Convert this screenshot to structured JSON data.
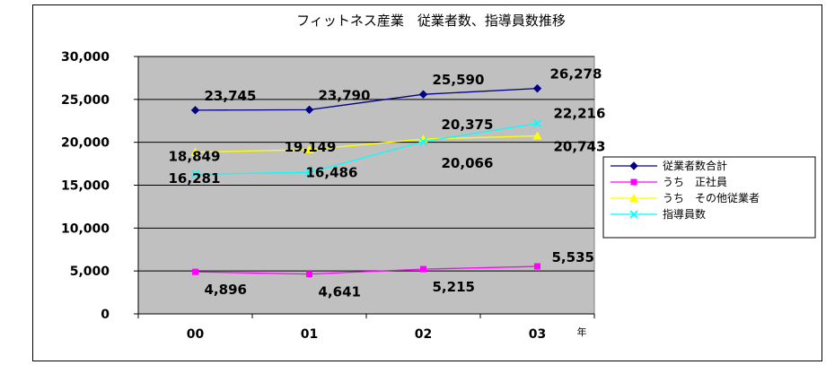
{
  "chart_data": {
    "type": "line",
    "title": "フィットネス産業　従業者数、指導員数推移",
    "categories": [
      "00",
      "01",
      "02",
      "03"
    ],
    "x_unit": "年",
    "ylim": [
      0,
      30000
    ],
    "yticks": [
      "0",
      "5,000",
      "10,000",
      "15,000",
      "20,000",
      "25,000",
      "30,000"
    ],
    "grid": true,
    "plot_background": "#c0c0c0",
    "legend_position": "right",
    "series": [
      {
        "name": "従業者数合計",
        "values": [
          23745,
          23790,
          25590,
          26278
        ],
        "labels": [
          "23,745",
          "23,790",
          "25,590",
          "26,278"
        ],
        "color": "#000080",
        "marker": "diamond"
      },
      {
        "name": "うち　正社員",
        "values": [
          4896,
          4641,
          5215,
          5535
        ],
        "labels": [
          "4,896",
          "4,641",
          "5,215",
          "5,535"
        ],
        "color": "#ff00ff",
        "marker": "square"
      },
      {
        "name": "うち　その他従業者",
        "values": [
          18849,
          19149,
          20375,
          20743
        ],
        "labels": [
          "18,849",
          "19,149",
          "20,375",
          "20,743"
        ],
        "color": "#ffff00",
        "marker": "triangle"
      },
      {
        "name": "指導員数",
        "values": [
          16281,
          16486,
          20066,
          22216
        ],
        "labels": [
          "16,281",
          "16,486",
          "20,066",
          "22,216"
        ],
        "color": "#00ffff",
        "marker": "x"
      }
    ]
  }
}
